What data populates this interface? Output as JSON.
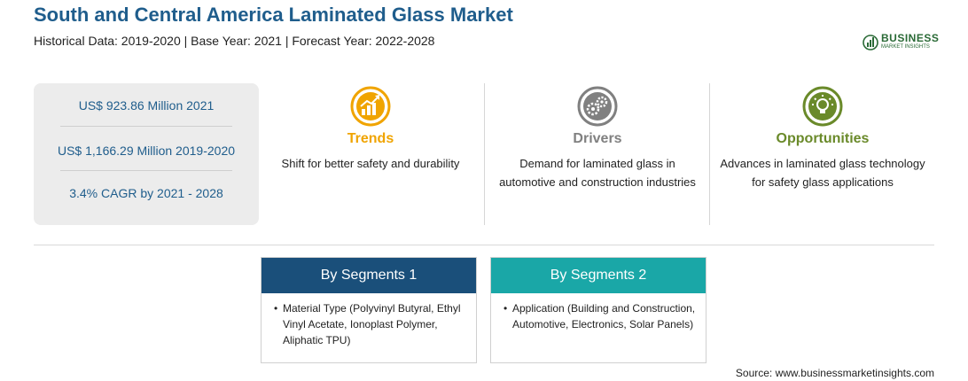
{
  "header": {
    "title": "South and Central America Laminated Glass Market",
    "subtitle": "Historical Data: 2019-2020 | Base Year: 2021 | Forecast Year: 2022-2028"
  },
  "logo": {
    "main": "BUSINESS",
    "sub": "MARKET INSIGHTS",
    "icon": "globe-bars-icon",
    "color": "#2a6a36"
  },
  "stats": [
    {
      "text": "US$ 923.86 Million 2021"
    },
    {
      "text": "US$ 1,166.29 Million 2019-2020"
    },
    {
      "text": "3.4% CAGR by 2021 - 2028"
    }
  ],
  "columns": [
    {
      "heading": "Trends",
      "icon": "growth-chart-icon",
      "color": "#f0a400",
      "description": "Shift for better safety and durability"
    },
    {
      "heading": "Drivers",
      "icon": "gears-icon",
      "color": "#808080",
      "description": "Demand for laminated glass in automotive and construction industries"
    },
    {
      "heading": "Opportunities",
      "icon": "lightbulb-icon",
      "color": "#6a8a2a",
      "description": "Advances in laminated glass technology for safety glass applications"
    }
  ],
  "segments": [
    {
      "heading": "By Segments 1",
      "color": "#1a4f7a",
      "bullet": "•",
      "text": "Material Type (Polyvinyl Butyral, Ethyl Vinyl Acetate, Ionoplast Polymer, Aliphatic TPU)"
    },
    {
      "heading": "By Segments 2",
      "color": "#1aa7a7",
      "bullet": "•",
      "text": "Application (Building and Construction, Automotive, Electronics, Solar Panels)"
    }
  ],
  "source": "Source: www.businessmarketinsights.com"
}
